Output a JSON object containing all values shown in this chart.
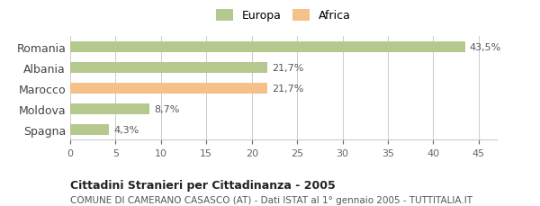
{
  "categories": [
    "Romania",
    "Albania",
    "Marocco",
    "Moldova",
    "Spagna"
  ],
  "values": [
    43.5,
    21.7,
    21.7,
    8.7,
    4.3
  ],
  "labels": [
    "43,5%",
    "21,7%",
    "21,7%",
    "8,7%",
    "4,3%"
  ],
  "colors": [
    "#b5c98e",
    "#b5c98e",
    "#f5c08a",
    "#b5c98e",
    "#b5c98e"
  ],
  "legend_items": [
    {
      "label": "Europa",
      "color": "#b5c98e"
    },
    {
      "label": "Africa",
      "color": "#f5c08a"
    }
  ],
  "xlim": [
    0,
    47
  ],
  "xticks": [
    0,
    5,
    10,
    15,
    20,
    25,
    30,
    35,
    40,
    45
  ],
  "title_bold": "Cittadini Stranieri per Cittadinanza - 2005",
  "subtitle": "COMUNE DI CAMERANO CASASCO (AT) - Dati ISTAT al 1° gennaio 2005 - TUTTITALIA.IT",
  "background_color": "#ffffff",
  "bar_height": 0.55,
  "grid_color": "#cccccc"
}
